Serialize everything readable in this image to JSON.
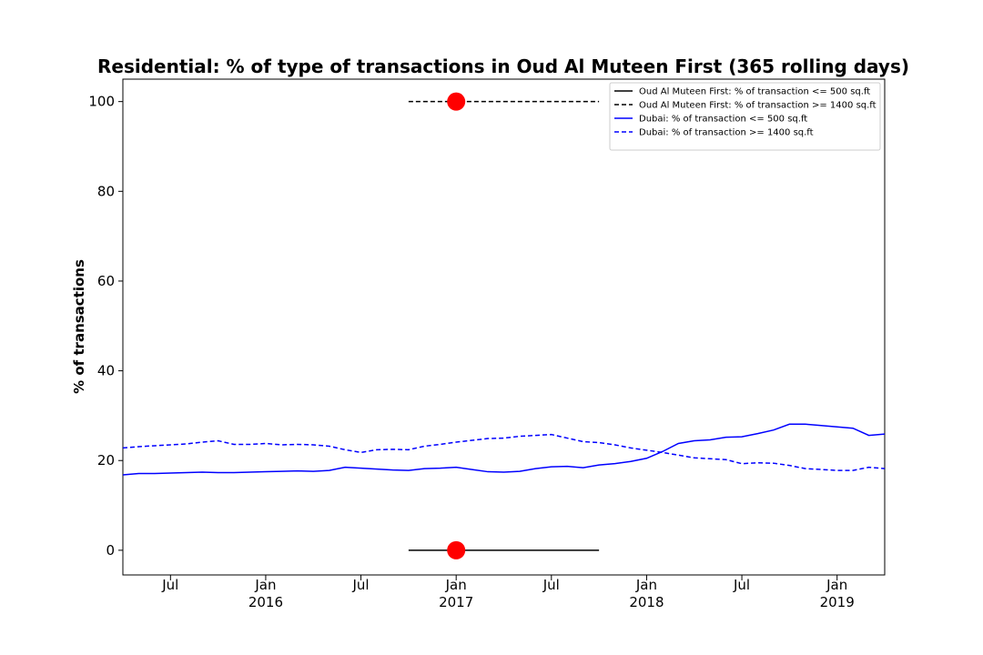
{
  "chart_data": {
    "type": "line",
    "title": "Residential: % of type of transactions in Oud Al Muteen First (365 rolling days)",
    "ylabel": "% of transactions",
    "xlim": [
      "2015-04",
      "2019-04"
    ],
    "xticks": [
      {
        "value": "2015-07",
        "label": "Jul"
      },
      {
        "value": "2016-01",
        "label": "Jan\n2016"
      },
      {
        "value": "2016-07",
        "label": "Jul"
      },
      {
        "value": "2017-01",
        "label": "Jan\n2017"
      },
      {
        "value": "2017-07",
        "label": "Jul"
      },
      {
        "value": "2018-01",
        "label": "Jan\n2018"
      },
      {
        "value": "2018-07",
        "label": "Jul"
      },
      {
        "value": "2019-01",
        "label": "Jan\n2019"
      }
    ],
    "ylim": [
      -5.5,
      105
    ],
    "yticks": [
      0,
      20,
      40,
      60,
      80,
      100
    ],
    "legend": "upper right",
    "series": [
      {
        "name": "Oud Al Muteen First: % of transaction <= 500 sq.ft",
        "color": "#000000",
        "dash": false,
        "x": [
          "2016-10",
          "2017-10"
        ],
        "values": [
          0,
          0
        ]
      },
      {
        "name": "Oud Al Muteen First: % of transaction >= 1400 sq.ft",
        "color": "#000000",
        "dash": true,
        "x": [
          "2016-10",
          "2017-10"
        ],
        "values": [
          100,
          100
        ]
      },
      {
        "name": "Dubai: % of transaction <= 500 sq.ft",
        "color": "#0000ff",
        "dash": false,
        "x": [
          "2015-04",
          "2015-05",
          "2015-06",
          "2015-07",
          "2015-08",
          "2015-09",
          "2015-10",
          "2015-11",
          "2015-12",
          "2016-01",
          "2016-02",
          "2016-03",
          "2016-04",
          "2016-05",
          "2016-06",
          "2016-07",
          "2016-08",
          "2016-09",
          "2016-10",
          "2016-11",
          "2016-12",
          "2017-01",
          "2017-02",
          "2017-03",
          "2017-04",
          "2017-05",
          "2017-06",
          "2017-07",
          "2017-08",
          "2017-09",
          "2017-10",
          "2017-11",
          "2017-12",
          "2018-01",
          "2018-02",
          "2018-03",
          "2018-04",
          "2018-05",
          "2018-06",
          "2018-07",
          "2018-08",
          "2018-09",
          "2018-10",
          "2018-11",
          "2018-12",
          "2019-01",
          "2019-02",
          "2019-03",
          "2019-04"
        ],
        "values": [
          16.8,
          17.1,
          17.1,
          17.2,
          17.3,
          17.4,
          17.3,
          17.3,
          17.4,
          17.5,
          17.6,
          17.7,
          17.6,
          17.8,
          18.5,
          18.3,
          18.1,
          17.9,
          17.8,
          18.2,
          18.3,
          18.5,
          18.0,
          17.5,
          17.4,
          17.6,
          18.2,
          18.6,
          18.7,
          18.4,
          19.0,
          19.3,
          19.8,
          20.5,
          22.0,
          23.8,
          24.4,
          24.6,
          25.2,
          25.3,
          26.0,
          26.8,
          28.1,
          28.1,
          27.8,
          27.5,
          27.2,
          25.6,
          25.9
        ]
      },
      {
        "name": "Dubai: % of transaction >= 1400 sq.ft",
        "color": "#0000ff",
        "dash": true,
        "x": [
          "2015-04",
          "2015-05",
          "2015-06",
          "2015-07",
          "2015-08",
          "2015-09",
          "2015-10",
          "2015-11",
          "2015-12",
          "2016-01",
          "2016-02",
          "2016-03",
          "2016-04",
          "2016-05",
          "2016-06",
          "2016-07",
          "2016-08",
          "2016-09",
          "2016-10",
          "2016-11",
          "2016-12",
          "2017-01",
          "2017-02",
          "2017-03",
          "2017-04",
          "2017-05",
          "2017-06",
          "2017-07",
          "2017-08",
          "2017-09",
          "2017-10",
          "2017-11",
          "2017-12",
          "2018-01",
          "2018-02",
          "2018-03",
          "2018-04",
          "2018-05",
          "2018-06",
          "2018-07",
          "2018-08",
          "2018-09",
          "2018-10",
          "2018-11",
          "2018-12",
          "2019-01",
          "2019-02",
          "2019-03",
          "2019-04"
        ],
        "values": [
          22.8,
          23.1,
          23.3,
          23.5,
          23.7,
          24.1,
          24.4,
          23.6,
          23.6,
          23.8,
          23.5,
          23.6,
          23.5,
          23.2,
          22.4,
          21.8,
          22.4,
          22.5,
          22.4,
          23.2,
          23.6,
          24.1,
          24.5,
          24.9,
          25.0,
          25.4,
          25.6,
          25.8,
          25.0,
          24.2,
          24.0,
          23.5,
          22.8,
          22.3,
          21.8,
          21.2,
          20.6,
          20.4,
          20.2,
          19.3,
          19.5,
          19.4,
          18.9,
          18.2,
          18.0,
          17.8,
          17.8,
          18.5,
          18.2
        ]
      }
    ],
    "markers": [
      {
        "x": "2017-01",
        "value": 0,
        "color": "#ff0000"
      },
      {
        "x": "2017-01",
        "value": 100,
        "color": "#ff0000"
      }
    ]
  }
}
